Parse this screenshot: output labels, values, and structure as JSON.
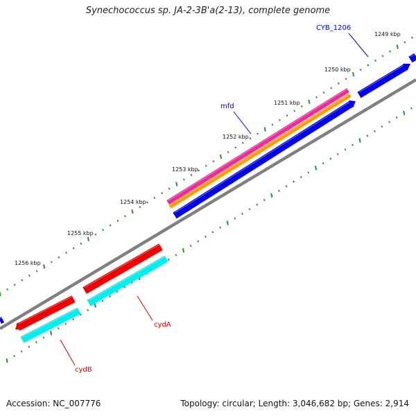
{
  "header": {
    "title": "Synechococcus sp. JA-2-3B'a(2-13), complete genome"
  },
  "footer": {
    "accession": "Accession: NC_007776",
    "stats": "Topology: circular; Length: 3,046,682 bp; Genes: 2,914"
  },
  "colors": {
    "backbone": "#808080",
    "tick": "#2e8b2e",
    "gene_blue": "#0000ee",
    "gene_magenta": "#ee2a9a",
    "gene_orange": "#ff9900",
    "gene_red": "#ee0000",
    "gene_cyan": "#00eeee",
    "label_blue": "#0000cc",
    "label_red": "#cc0000"
  },
  "ticks": [
    {
      "label": "1249 kbp"
    },
    {
      "label": "1250 kbp"
    },
    {
      "label": "1251 kbp"
    },
    {
      "label": "1252 kbp"
    },
    {
      "label": "1253 kbp"
    },
    {
      "label": "1254 kbp"
    },
    {
      "label": "1255 kbp"
    },
    {
      "label": "1256 kbp"
    }
  ],
  "genes": [
    {
      "name": "CYB_1206",
      "color": "label_blue"
    },
    {
      "name": "mfd",
      "color": "label_blue"
    },
    {
      "name": "cydA",
      "color": "label_red"
    },
    {
      "name": "cydB",
      "color": "label_red"
    }
  ]
}
